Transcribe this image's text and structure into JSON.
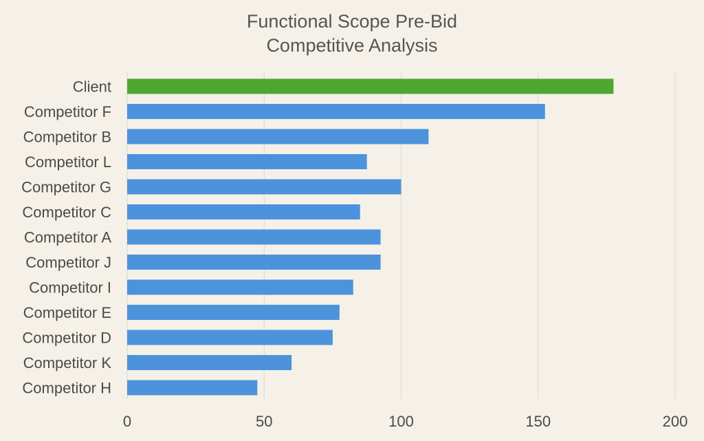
{
  "chart_data": {
    "type": "bar",
    "orientation": "horizontal",
    "title_line1": "Functional Scope Pre-Bid",
    "title_line2": "Competitive Analysis",
    "xlabel": "",
    "ylabel": "",
    "xlim": [
      0,
      200
    ],
    "ticks": [
      0,
      50,
      100,
      150,
      200
    ],
    "grid": true,
    "categories": [
      "Client",
      "Competitor F",
      "Competitor B",
      "Competitor L",
      "Competitor G",
      "Competitor C",
      "Competitor A",
      "Competitor J",
      "Competitor I",
      "Competitor E",
      "Competitor D",
      "Competitor K",
      "Competitor H"
    ],
    "values": [
      177.5,
      152.5,
      110,
      87.5,
      100,
      85,
      92.5,
      92.5,
      82.5,
      77.5,
      75,
      60,
      47.5
    ],
    "colors": {
      "highlight": "#4ea72e",
      "bar": "#4d93dc",
      "grid": "#dcd8cf",
      "background": "#f5f1e8"
    },
    "highlight_index": 0
  }
}
